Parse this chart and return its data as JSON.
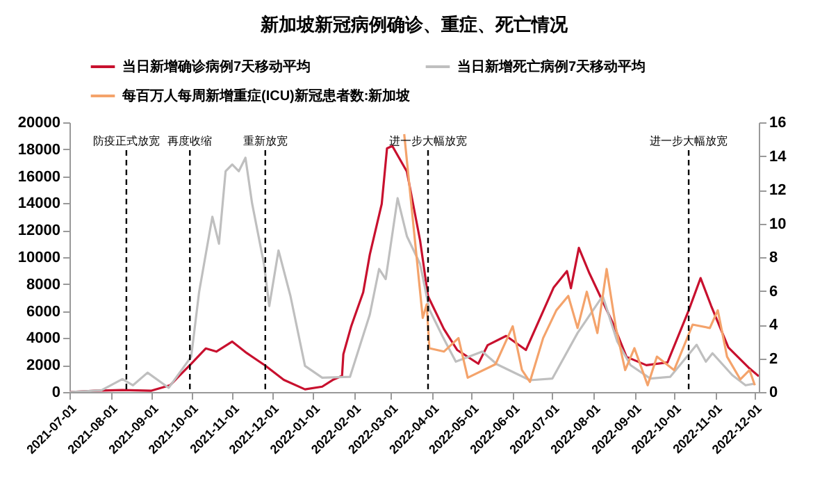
{
  "chart_data": {
    "type": "line",
    "title": "新加坡新冠病例确诊、重症、死亡情况",
    "legend": "top",
    "xlim": [
      "2021-07-01",
      "2022-12-04"
    ],
    "xticks": [
      "2021-07-01",
      "2021-08-01",
      "2021-09-01",
      "2021-10-01",
      "2021-11-01",
      "2021-12-01",
      "2022-01-01",
      "2022-02-01",
      "2022-03-01",
      "2022-04-01",
      "2022-05-01",
      "2022-06-01",
      "2022-07-01",
      "2022-08-01",
      "2022-09-01",
      "2022-10-01",
      "2022-11-01",
      "2022-12-01"
    ],
    "ylim": [
      0,
      20000
    ],
    "yticks": [
      0,
      2000,
      4000,
      6000,
      8000,
      10000,
      12000,
      14000,
      16000,
      18000,
      20000
    ],
    "y2lim": [
      0,
      16
    ],
    "y2ticks": [
      0,
      2,
      4,
      6,
      8,
      10,
      12,
      14,
      16
    ],
    "series": [
      {
        "name": "当日新增确诊病例7天移动平均",
        "color": "#c8102e",
        "x": [
          "2021-07-01",
          "2021-07-20",
          "2021-08-10",
          "2021-09-01",
          "2021-09-15",
          "2021-10-01",
          "2021-10-12",
          "2021-10-20",
          "2021-11-01",
          "2021-11-12",
          "2021-11-26",
          "2021-12-10",
          "2021-12-26",
          "2022-01-08",
          "2022-01-16",
          "2022-01-23",
          "2022-01-24",
          "2022-01-30",
          "2022-02-08",
          "2022-02-13",
          "2022-02-22",
          "2022-02-26",
          "2022-03-02",
          "2022-03-10",
          "2022-03-13",
          "2022-03-23",
          "2022-03-29",
          "2022-04-10",
          "2022-04-20",
          "2022-05-06",
          "2022-05-13",
          "2022-05-27",
          "2022-06-11",
          "2022-07-02",
          "2022-07-12",
          "2022-07-15",
          "2022-07-21",
          "2022-07-29",
          "2022-08-16",
          "2022-08-26",
          "2022-09-10",
          "2022-09-26",
          "2022-10-12",
          "2022-10-21",
          "2022-10-29",
          "2022-11-11",
          "2022-11-27",
          "2022-12-04"
        ],
        "values": [
          0,
          100,
          150,
          100,
          500,
          2100,
          3230,
          3000,
          3740,
          2890,
          1960,
          900,
          200,
          400,
          900,
          1200,
          2800,
          4900,
          7400,
          10200,
          13950,
          18070,
          18250,
          16870,
          16350,
          11240,
          7100,
          4670,
          3120,
          2100,
          3470,
          4160,
          3120,
          7760,
          8970,
          7700,
          10690,
          8800,
          5050,
          2610,
          1990,
          2200,
          6050,
          8450,
          6390,
          3300,
          1750,
          1170
        ]
      },
      {
        "name": "当日新增死亡病例7天移动平均",
        "color": "#bfbfbf",
        "axis": "y2",
        "x": [
          "2021-07-01",
          "2021-07-25",
          "2021-08-10",
          "2021-08-18",
          "2021-08-29",
          "2021-09-14",
          "2021-10-01",
          "2021-10-07",
          "2021-10-17",
          "2021-10-22",
          "2021-10-27",
          "2021-11-01",
          "2021-11-06",
          "2021-11-11",
          "2021-11-16",
          "2021-11-25",
          "2021-11-29",
          "2021-12-06",
          "2021-12-15",
          "2021-12-26",
          "2022-01-08",
          "2022-01-29",
          "2022-02-13",
          "2022-02-20",
          "2022-02-25",
          "2022-03-06",
          "2022-03-13",
          "2022-03-23",
          "2022-03-30",
          "2022-04-09",
          "2022-04-19",
          "2022-05-09",
          "2022-05-20",
          "2022-06-14",
          "2022-07-01",
          "2022-07-20",
          "2022-08-08",
          "2022-08-19",
          "2022-08-29",
          "2022-09-13",
          "2022-09-28",
          "2022-10-18",
          "2022-10-25",
          "2022-10-30",
          "2022-11-14",
          "2022-11-24",
          "2022-12-01"
        ],
        "values": [
          0,
          0.1,
          0.77,
          0.4,
          1.15,
          0.25,
          2.1,
          5.95,
          10.4,
          8.8,
          13.1,
          13.5,
          13.1,
          13.9,
          11.2,
          7.6,
          5.1,
          8.4,
          5.7,
          1.55,
          0.85,
          0.9,
          4.6,
          7.3,
          6.7,
          11.5,
          9.25,
          7.6,
          4.9,
          3.3,
          1.8,
          2.4,
          1.65,
          0.7,
          0.8,
          3.5,
          5.7,
          3.0,
          1.6,
          0.8,
          0.9,
          2.8,
          1.8,
          2.3,
          1.0,
          0.4,
          0.5
        ]
      },
      {
        "name": "每百万人每周新增重症(ICU)新冠患者数:新加坡",
        "color": "#f4a36b",
        "axis": "y2",
        "x": [
          "2022-03-11",
          "2022-03-25",
          "2022-03-28",
          "2022-03-30",
          "2022-04-10",
          "2022-04-21",
          "2022-04-28",
          "2022-05-19",
          "2022-06-01",
          "2022-06-08",
          "2022-06-14",
          "2022-06-24",
          "2022-07-04",
          "2022-07-13",
          "2022-07-20",
          "2022-07-27",
          "2022-08-04",
          "2022-08-11",
          "2022-08-18",
          "2022-08-25",
          "2022-09-01",
          "2022-09-11",
          "2022-09-18",
          "2022-10-01",
          "2022-10-15",
          "2022-10-28",
          "2022-11-03",
          "2022-11-10",
          "2022-11-20",
          "2022-11-27",
          "2022-12-01"
        ],
        "values": [
          15.3,
          4.4,
          5.2,
          2.6,
          2.4,
          3.2,
          0.85,
          1.65,
          3.9,
          1.3,
          0.6,
          3.2,
          4.85,
          5.7,
          3.8,
          5.95,
          3.5,
          7.3,
          3.8,
          1.3,
          2.6,
          0.4,
          2.1,
          1.3,
          4.0,
          3.8,
          4.85,
          2.1,
          0.75,
          1.3,
          0.4
        ]
      }
    ],
    "ref_lines": [
      {
        "axis": "x",
        "value": "2021-08-13",
        "label": "防疫正式放宽",
        "color": "#000000",
        "line_style": "dashed"
      },
      {
        "axis": "x",
        "value": "2021-09-30",
        "label": "再度收缩",
        "color": "#000000",
        "line_style": "dashed"
      },
      {
        "axis": "x",
        "value": "2021-11-26",
        "label": "重新放宽",
        "color": "#000000",
        "line_style": "dashed"
      },
      {
        "axis": "x",
        "value": "2022-03-29",
        "label": "进一步大幅放宽",
        "color": "#000000",
        "line_style": "dashed"
      },
      {
        "axis": "x",
        "value": "2022-10-12",
        "label": "进一步大幅放宽",
        "color": "#000000",
        "line_style": "dashed"
      }
    ]
  }
}
